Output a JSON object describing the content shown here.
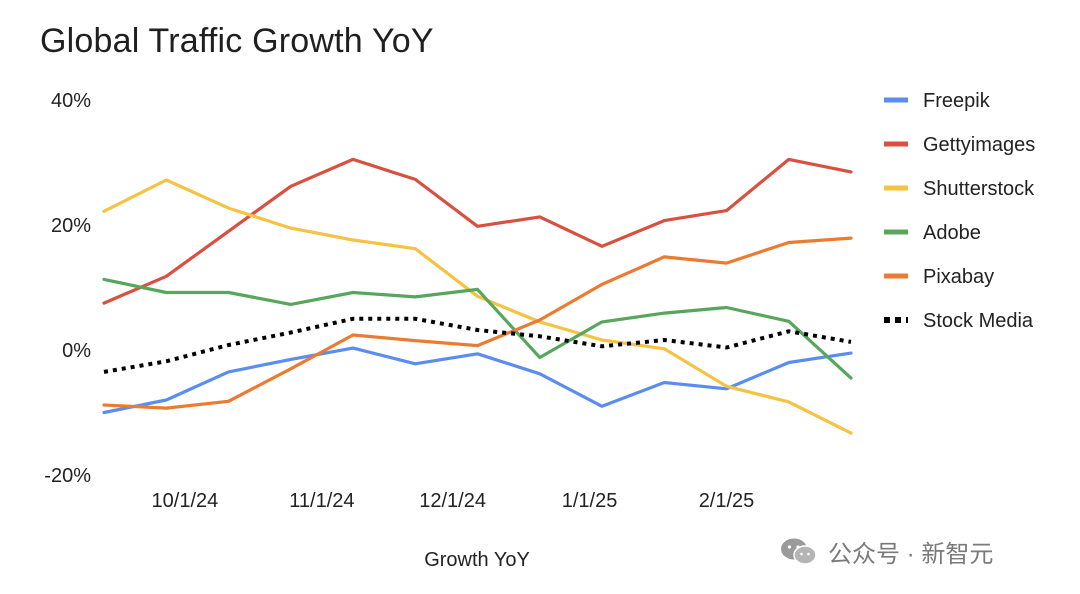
{
  "chart_data": {
    "type": "line",
    "title": "Global Traffic Growth YoY",
    "xlabel": "Growth YoY",
    "ylabel": "",
    "x": [
      0,
      1,
      2,
      3,
      4,
      5,
      6,
      7,
      8,
      9,
      10,
      11,
      12
    ],
    "x_tick_positions": [
      1.3,
      3.5,
      5.6,
      7.8,
      10.0
    ],
    "x_tick_labels": [
      "10/1/24",
      "11/1/24",
      "12/1/24",
      "1/1/25",
      "2/1/25"
    ],
    "ylim": [
      -20,
      40
    ],
    "y_ticks": [
      -20,
      0,
      20,
      40
    ],
    "y_tick_labels": [
      "-20%",
      "0%",
      "20%",
      "40%"
    ],
    "grid": false,
    "legend_position": "right",
    "series": [
      {
        "name": "Freepik",
        "color": "#5b8def",
        "style": "solid",
        "values": [
          -10,
          -8,
          -3.5,
          -1.5,
          0.3,
          -2.2,
          -0.6,
          -3.8,
          -9,
          -5.2,
          -6.2,
          -2,
          -0.5
        ]
      },
      {
        "name": "Gettyimages",
        "color": "#d8503f",
        "style": "solid",
        "values": [
          7.5,
          11.8,
          19,
          26.2,
          30.5,
          27.3,
          19.8,
          21.3,
          16.6,
          20.7,
          22.3,
          30.5,
          28.5
        ]
      },
      {
        "name": "Shutterstock",
        "color": "#f5c242",
        "style": "solid",
        "values": [
          22.2,
          27.2,
          22.7,
          19.5,
          17.6,
          16.2,
          8.6,
          4.5,
          1.6,
          0.2,
          -5.8,
          -8.3,
          -13.3
        ]
      },
      {
        "name": "Adobe",
        "color": "#58a65c",
        "style": "solid",
        "values": [
          11.3,
          9.2,
          9.2,
          7.3,
          9.2,
          8.5,
          9.7,
          -1.2,
          4.5,
          5.9,
          6.8,
          4.6,
          -4.5
        ]
      },
      {
        "name": "Pixabay",
        "color": "#eb7b30",
        "style": "solid",
        "values": [
          -8.8,
          -9.3,
          -8.2,
          -3,
          2.4,
          1.5,
          0.7,
          4.8,
          10.5,
          14.9,
          13.9,
          17.2,
          17.9
        ]
      },
      {
        "name": "Stock Media",
        "color": "#000000",
        "style": "dotted",
        "values": [
          -3.5,
          -1.8,
          0.8,
          2.8,
          5,
          5,
          3.2,
          2.2,
          0.6,
          1.6,
          0.4,
          3,
          1.3
        ]
      }
    ]
  },
  "watermark": {
    "icon": "wechat-icon",
    "text": "公众号 · 新智元"
  }
}
